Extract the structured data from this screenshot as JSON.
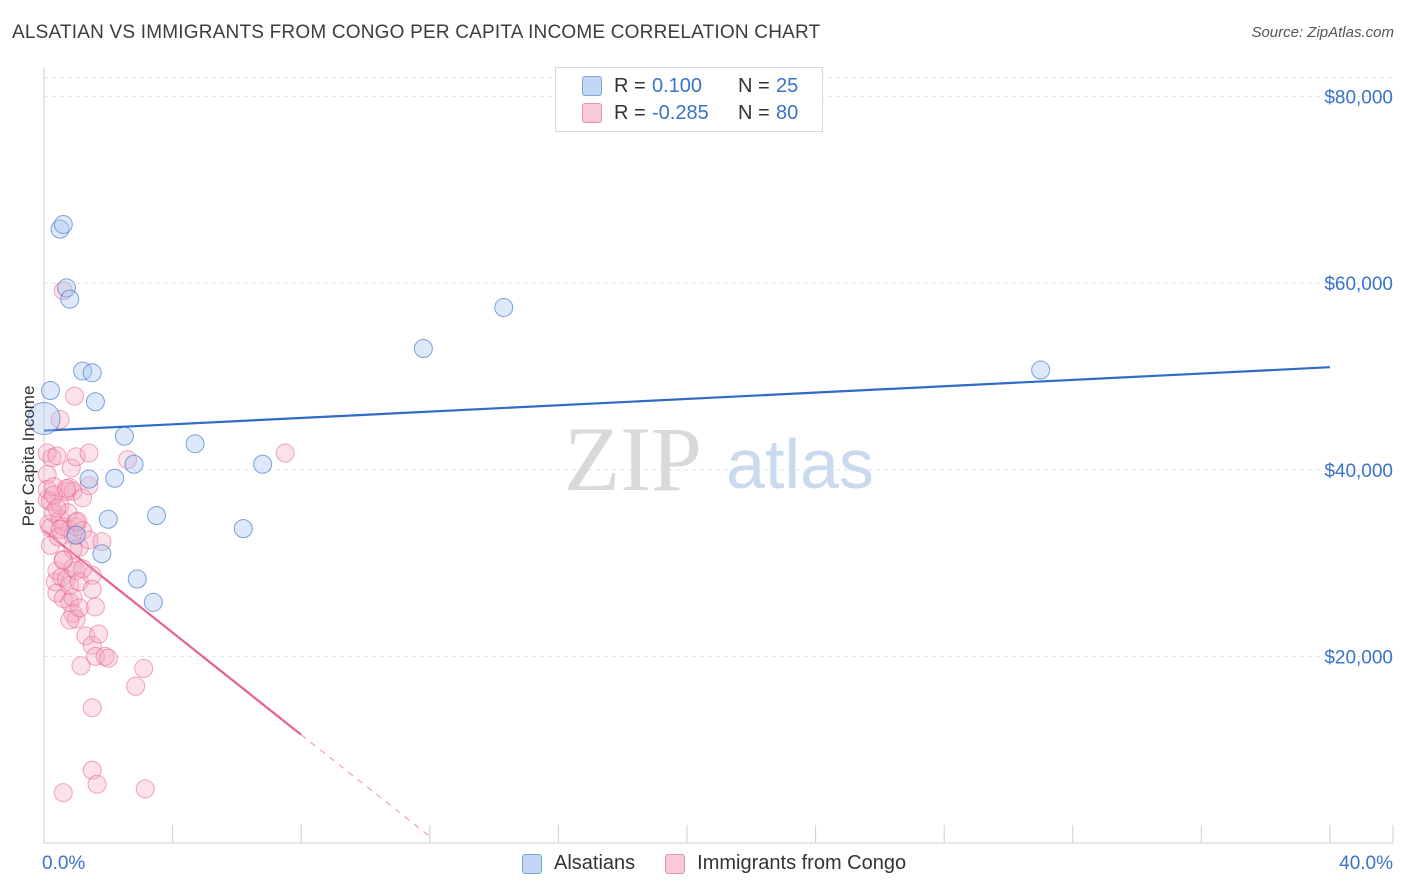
{
  "title": "ALSATIAN VS IMMIGRANTS FROM CONGO PER CAPITA INCOME CORRELATION CHART",
  "source": "Source: ZipAtlas.com",
  "watermark": {
    "zip": "ZIP",
    "atlas": "atlas"
  },
  "legend": {
    "rows": [
      {
        "r_label": "R =",
        "r_value": "0.100",
        "n_label": "N =",
        "n_value": "25"
      },
      {
        "r_label": "R =",
        "r_value": "-0.285",
        "n_label": "N =",
        "n_value": "80"
      }
    ]
  },
  "bottom_legend": {
    "series1": "Alsatians",
    "series2": "Immigrants from Congo"
  },
  "colors": {
    "blue": "#3a73c9",
    "blue_fill": "#c3d7f5",
    "pink": "#e8608e",
    "pink_fill": "#f8c9d6",
    "axis_text": "#3a73c9"
  },
  "chart_data": {
    "type": "scatter",
    "title": "ALSATIAN VS IMMIGRANTS FROM CONGO PER CAPITA INCOME CORRELATION CHART",
    "xlabel": "",
    "ylabel": "Per Capita Income",
    "xlim": [
      0,
      40
    ],
    "ylim": [
      0,
      82000
    ],
    "x_tick_labels": [
      "0.0%",
      "40.0%"
    ],
    "y_ticks": [
      20000,
      40000,
      60000,
      80000
    ],
    "y_tick_labels": [
      "$20,000",
      "$40,000",
      "$60,000",
      "$80,000"
    ],
    "series": [
      {
        "name": "Alsatians",
        "color": "#3a73c9",
        "points": [
          [
            0,
            45500
          ],
          [
            0.2,
            48500
          ],
          [
            0.5,
            65800
          ],
          [
            0.6,
            66300
          ],
          [
            0.7,
            59500
          ],
          [
            0.8,
            58300
          ],
          [
            1.0,
            33000
          ],
          [
            1.2,
            50600
          ],
          [
            1.4,
            39000
          ],
          [
            1.5,
            50400
          ],
          [
            1.6,
            47300
          ],
          [
            1.8,
            31000
          ],
          [
            2.0,
            34700
          ],
          [
            2.2,
            39100
          ],
          [
            2.5,
            43600
          ],
          [
            2.8,
            40600
          ],
          [
            2.9,
            28300
          ],
          [
            3.4,
            25800
          ],
          [
            3.5,
            35100
          ],
          [
            4.7,
            42800
          ],
          [
            6.2,
            33700
          ],
          [
            6.8,
            40600
          ],
          [
            11.8,
            53000
          ],
          [
            14.3,
            57400
          ],
          [
            31.0,
            50700
          ]
        ],
        "trend": {
          "x": [
            0,
            40
          ],
          "y": [
            44200,
            51000
          ]
        }
      },
      {
        "name": "Immigrants from Congo",
        "color": "#e8608e",
        "points": [
          [
            0.1,
            41800
          ],
          [
            0.1,
            39500
          ],
          [
            0.1,
            36800
          ],
          [
            0.1,
            37900
          ],
          [
            0.15,
            34200
          ],
          [
            0.2,
            36600
          ],
          [
            0.2,
            33800
          ],
          [
            0.2,
            31900
          ],
          [
            0.25,
            41300
          ],
          [
            0.3,
            35400
          ],
          [
            0.3,
            38200
          ],
          [
            0.35,
            28000
          ],
          [
            0.4,
            29200
          ],
          [
            0.4,
            26800
          ],
          [
            0.4,
            41500
          ],
          [
            0.45,
            32800
          ],
          [
            0.5,
            34700
          ],
          [
            0.5,
            36200
          ],
          [
            0.5,
            45400
          ],
          [
            0.55,
            28500
          ],
          [
            0.6,
            59200
          ],
          [
            0.6,
            33900
          ],
          [
            0.6,
            30400
          ],
          [
            0.6,
            26200
          ],
          [
            0.7,
            37700
          ],
          [
            0.7,
            28300
          ],
          [
            0.75,
            35400
          ],
          [
            0.8,
            38100
          ],
          [
            0.8,
            33600
          ],
          [
            0.8,
            27600
          ],
          [
            0.8,
            25800
          ],
          [
            0.85,
            40200
          ],
          [
            0.9,
            37700
          ],
          [
            0.9,
            33000
          ],
          [
            0.9,
            29500
          ],
          [
            0.9,
            26300
          ],
          [
            0.9,
            24600
          ],
          [
            0.95,
            47900
          ],
          [
            1.0,
            33900
          ],
          [
            1.0,
            29200
          ],
          [
            1.0,
            24000
          ],
          [
            1.0,
            41400
          ],
          [
            1.05,
            34500
          ],
          [
            1.1,
            28000
          ],
          [
            1.1,
            31700
          ],
          [
            1.1,
            25200
          ],
          [
            1.15,
            19000
          ],
          [
            1.2,
            37000
          ],
          [
            1.2,
            33500
          ],
          [
            1.3,
            22200
          ],
          [
            1.4,
            41800
          ],
          [
            1.4,
            38300
          ],
          [
            1.4,
            32500
          ],
          [
            1.5,
            28700
          ],
          [
            1.5,
            27200
          ],
          [
            1.5,
            21200
          ],
          [
            1.5,
            14500
          ],
          [
            1.5,
            7800
          ],
          [
            1.6,
            25300
          ],
          [
            1.6,
            20000
          ],
          [
            1.65,
            6300
          ],
          [
            1.7,
            22400
          ],
          [
            1.8,
            32300
          ],
          [
            1.9,
            20000
          ],
          [
            2.0,
            19800
          ],
          [
            2.6,
            41100
          ],
          [
            2.85,
            16800
          ],
          [
            3.1,
            18700
          ],
          [
            3.15,
            5800
          ],
          [
            7.5,
            41800
          ],
          [
            0.6,
            5400
          ],
          [
            0.3,
            37300
          ],
          [
            0.5,
            33600
          ],
          [
            0.7,
            38000
          ],
          [
            0.9,
            31500
          ],
          [
            1.2,
            29400
          ],
          [
            0.4,
            35900
          ],
          [
            0.6,
            30300
          ],
          [
            0.8,
            23900
          ],
          [
            1.0,
            34400
          ]
        ],
        "trend": {
          "x": [
            0,
            8
          ],
          "y": [
            33500,
            11600
          ]
        },
        "trend_dashed": {
          "x": [
            8,
            12
          ],
          "y": [
            11600,
            700
          ]
        }
      }
    ]
  }
}
